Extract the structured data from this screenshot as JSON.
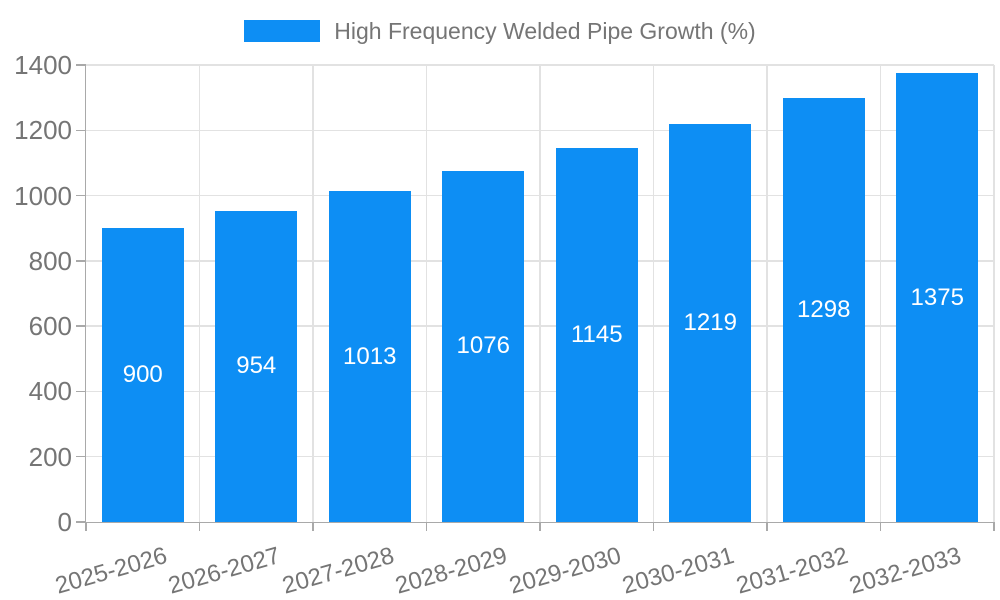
{
  "chart_data": {
    "type": "bar",
    "title": "High Frequency Welded Pipe Growth (%)",
    "categories": [
      "2025-2026",
      "2026-2027",
      "2027-2028",
      "2028-2029",
      "2029-2030",
      "2030-2031",
      "2031-2032",
      "2032-2033"
    ],
    "values": [
      900,
      954,
      1013,
      1076,
      1145,
      1219,
      1298,
      1375
    ],
    "value_labels": [
      "900",
      "954",
      "1013",
      "1076",
      "1145",
      "1219",
      "1298",
      "1375"
    ],
    "xlabel": "",
    "ylabel": "",
    "ylim": [
      0,
      1400
    ],
    "yticks": [
      0,
      200,
      400,
      600,
      800,
      1000,
      1200,
      1400
    ],
    "grid": true,
    "legend_position": "top-center",
    "legend_label": "High Frequency Welded Pipe Growth (%)",
    "bar_color": "#0d8ef4",
    "value_label_color": "#ffffff",
    "tick_label_color": "#757575",
    "grid_color": "#e2e2e2",
    "axis_color": "#a9a9a9",
    "background_color": "#ffffff"
  }
}
